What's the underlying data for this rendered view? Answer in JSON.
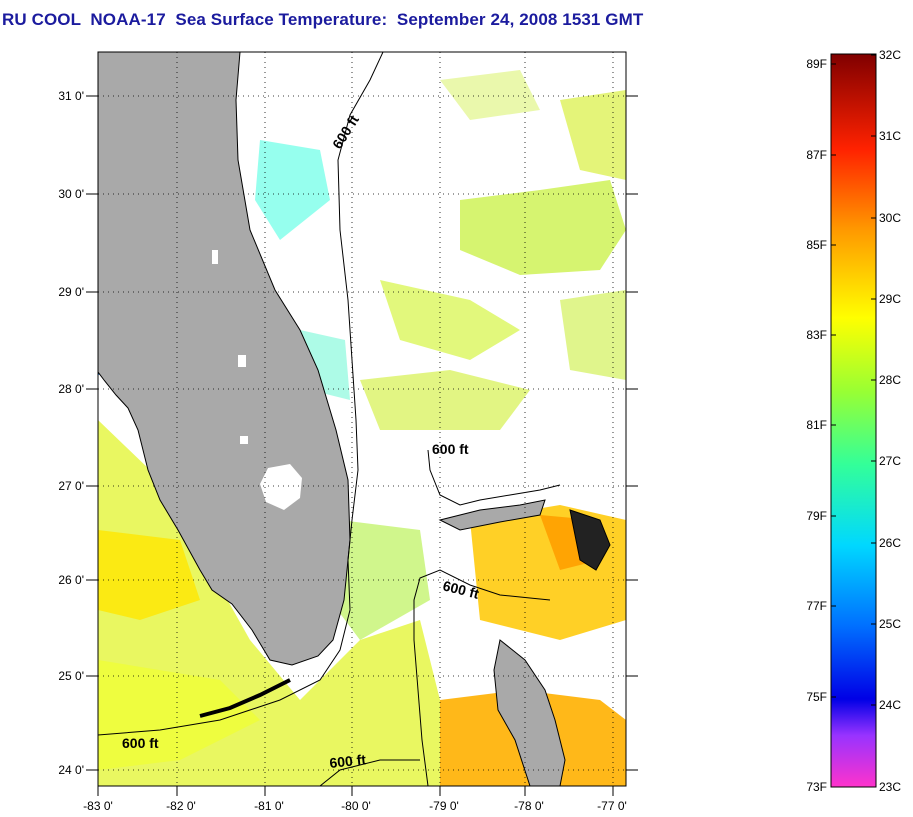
{
  "title": "RU COOL  NOAA-17  Sea Surface Temperature:  September 24, 2008 1531 GMT",
  "map": {
    "lat_labels": [
      "31 0'",
      "30 0'",
      "29 0'",
      "28 0'",
      "27 0'",
      "26 0'",
      "25 0'",
      "24 0'"
    ],
    "lon_labels": [
      "-83 0'",
      "-82 0'",
      "-81 0'",
      "-80 0'",
      "-79 0'",
      "-78 0'",
      "-77 0'"
    ],
    "contour_labels": [
      "600 ft",
      "600 ft",
      "600 ft",
      "600 ft",
      "600 ft"
    ],
    "colors": {
      "land": "#a9a9a9",
      "no_data": "#ffffff"
    }
  },
  "colorbar": {
    "fahrenheit_labels": [
      "89F",
      "87F",
      "85F",
      "83F",
      "81F",
      "79F",
      "77F",
      "75F",
      "73F"
    ],
    "celsius_labels": [
      "32C",
      "31C",
      "30C",
      "29C",
      "28C",
      "27C",
      "26C",
      "25C",
      "24C",
      "23C"
    ]
  }
}
